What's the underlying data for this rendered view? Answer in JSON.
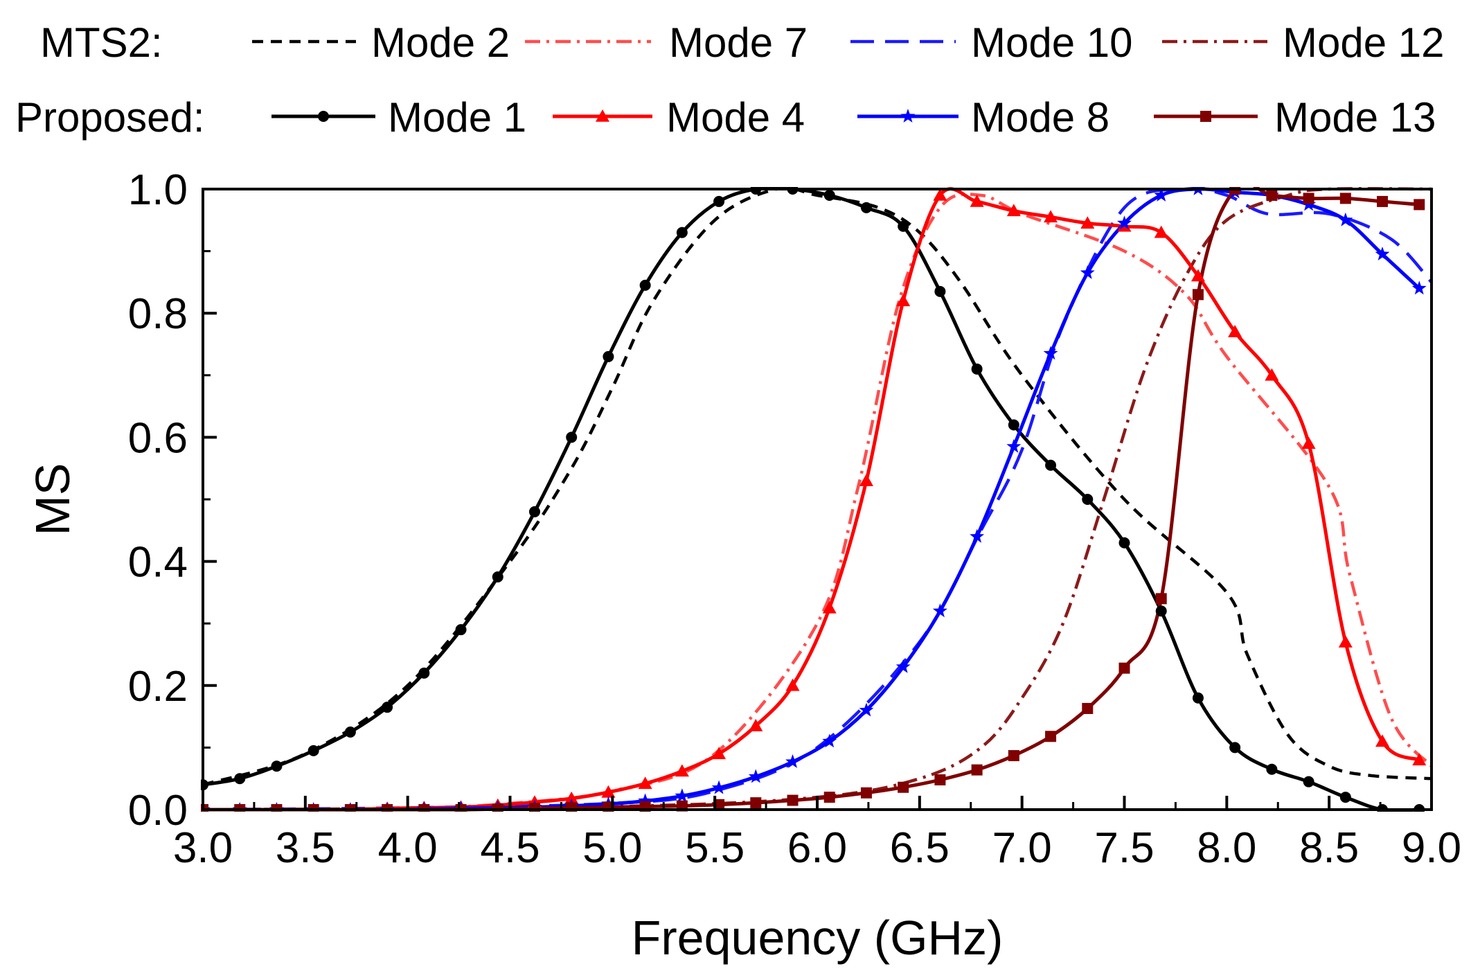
{
  "chart_data": {
    "type": "line",
    "title": "",
    "xlabel": "Frequency (GHz)",
    "ylabel": "MS",
    "xlim": [
      3.0,
      9.0
    ],
    "ylim": [
      0.0,
      1.0
    ],
    "xticks": [
      "3.0",
      "3.5",
      "4.0",
      "4.5",
      "5.0",
      "5.5",
      "6.0",
      "6.5",
      "7.0",
      "7.5",
      "8.0",
      "8.5",
      "9.0"
    ],
    "yticks": [
      "0.0",
      "0.2",
      "0.4",
      "0.6",
      "0.8",
      "1.0"
    ],
    "grid": false,
    "legend": {
      "placement": "top",
      "group_labels": [
        "MTS2:",
        "Proposed:"
      ]
    },
    "series": [
      {
        "name": "Mode 2",
        "group": "MTS2",
        "color": "#000000",
        "dash": "dash",
        "marker": "none",
        "x": [
          3.0,
          3.5,
          4.0,
          4.5,
          4.8,
          5.0,
          5.2,
          5.5,
          5.8,
          6.0,
          6.3,
          6.5,
          6.7,
          7.0,
          7.5,
          8.0,
          8.1,
          8.3,
          8.5,
          8.7,
          9.0
        ],
        "y": [
          0.04,
          0.09,
          0.2,
          0.4,
          0.55,
          0.68,
          0.82,
          0.95,
          1.0,
          0.99,
          0.97,
          0.93,
          0.85,
          0.7,
          0.5,
          0.35,
          0.25,
          0.12,
          0.07,
          0.055,
          0.05
        ]
      },
      {
        "name": "Mode 7",
        "group": "MTS2",
        "color": "#ff4d4d",
        "dash": "dashdot",
        "marker": "none",
        "x": [
          3.0,
          4.0,
          4.5,
          5.0,
          5.5,
          6.0,
          6.2,
          6.4,
          6.6,
          6.8,
          7.0,
          7.5,
          7.8,
          8.0,
          8.5,
          8.6,
          8.8,
          9.0
        ],
        "y": [
          0.0,
          0.002,
          0.01,
          0.03,
          0.09,
          0.3,
          0.52,
          0.82,
          0.97,
          0.99,
          0.96,
          0.9,
          0.83,
          0.73,
          0.52,
          0.38,
          0.15,
          0.07
        ]
      },
      {
        "name": "Mode 10",
        "group": "MTS2",
        "color": "#1a1aff",
        "dash": "longdash",
        "marker": "none",
        "x": [
          3.0,
          4.0,
          5.0,
          5.5,
          6.0,
          6.5,
          6.8,
          7.0,
          7.2,
          7.5,
          7.8,
          8.0,
          8.2,
          8.5,
          8.8,
          9.0
        ],
        "y": [
          0.0,
          0.003,
          0.01,
          0.03,
          0.1,
          0.27,
          0.45,
          0.58,
          0.78,
          0.97,
          1.0,
          0.99,
          0.96,
          0.96,
          0.92,
          0.85
        ]
      },
      {
        "name": "Mode 12",
        "group": "MTS2",
        "color": "#8b1a1a",
        "dash": "dashdot",
        "marker": "none",
        "x": [
          3.0,
          5.0,
          6.0,
          6.5,
          6.8,
          7.0,
          7.2,
          7.4,
          7.6,
          7.8,
          8.0,
          8.3,
          8.5,
          9.0
        ],
        "y": [
          0.0,
          0.005,
          0.02,
          0.05,
          0.1,
          0.18,
          0.3,
          0.5,
          0.71,
          0.86,
          0.95,
          0.99,
          1.0,
          1.0
        ]
      },
      {
        "name": "Mode 1",
        "group": "Proposed",
        "color": "#000000",
        "dash": "solid",
        "marker": "circle",
        "x": [
          3.0,
          3.18,
          3.36,
          3.54,
          3.72,
          3.9,
          4.08,
          4.26,
          4.44,
          4.62,
          4.8,
          4.98,
          5.16,
          5.34,
          5.52,
          5.7,
          5.88,
          6.06,
          6.24,
          6.42,
          6.6,
          6.78,
          6.96,
          7.14,
          7.32,
          7.5,
          7.68,
          7.86,
          8.04,
          8.22,
          8.4,
          8.58,
          8.76,
          8.94
        ],
        "y": [
          0.04,
          0.05,
          0.07,
          0.095,
          0.125,
          0.165,
          0.22,
          0.29,
          0.375,
          0.48,
          0.6,
          0.73,
          0.845,
          0.93,
          0.98,
          1.0,
          1.0,
          0.99,
          0.97,
          0.94,
          0.835,
          0.71,
          0.62,
          0.555,
          0.5,
          0.43,
          0.32,
          0.18,
          0.1,
          0.065,
          0.045,
          0.02,
          0.0,
          0.0
        ]
      },
      {
        "name": "Mode 4",
        "group": "Proposed",
        "color": "#ff0000",
        "dash": "solid",
        "marker": "triangle",
        "x": [
          3.0,
          3.18,
          3.36,
          3.54,
          3.72,
          3.9,
          4.08,
          4.26,
          4.44,
          4.62,
          4.8,
          4.98,
          5.16,
          5.34,
          5.52,
          5.7,
          5.88,
          6.06,
          6.24,
          6.42,
          6.6,
          6.78,
          6.96,
          7.14,
          7.32,
          7.5,
          7.68,
          7.86,
          8.04,
          8.22,
          8.4,
          8.58,
          8.76,
          8.94
        ],
        "y": [
          0.0,
          0.0,
          0.0,
          0.0,
          0.0,
          0.002,
          0.003,
          0.004,
          0.007,
          0.012,
          0.018,
          0.028,
          0.042,
          0.062,
          0.09,
          0.135,
          0.2,
          0.325,
          0.53,
          0.82,
          0.99,
          0.98,
          0.965,
          0.955,
          0.945,
          0.94,
          0.93,
          0.86,
          0.77,
          0.7,
          0.59,
          0.27,
          0.11,
          0.08
        ]
      },
      {
        "name": "Mode 8",
        "group": "Proposed",
        "color": "#0000ff",
        "dash": "solid",
        "marker": "star",
        "x": [
          3.0,
          3.18,
          3.36,
          3.54,
          3.72,
          3.9,
          4.08,
          4.26,
          4.44,
          4.62,
          4.8,
          4.98,
          5.16,
          5.34,
          5.52,
          5.7,
          5.88,
          6.06,
          6.24,
          6.42,
          6.6,
          6.78,
          6.96,
          7.14,
          7.32,
          7.5,
          7.68,
          7.86,
          8.04,
          8.22,
          8.4,
          8.58,
          8.76,
          8.94
        ],
        "y": [
          0.0,
          0.0,
          0.0,
          0.0,
          0.0,
          0.0,
          0.001,
          0.002,
          0.003,
          0.004,
          0.006,
          0.009,
          0.014,
          0.022,
          0.035,
          0.053,
          0.077,
          0.11,
          0.16,
          0.23,
          0.32,
          0.44,
          0.585,
          0.735,
          0.865,
          0.945,
          0.99,
          1.0,
          0.995,
          0.99,
          0.975,
          0.95,
          0.895,
          0.84
        ]
      },
      {
        "name": "Mode 13",
        "group": "Proposed",
        "color": "#800000",
        "dash": "solid",
        "marker": "square",
        "x": [
          3.0,
          3.18,
          3.36,
          3.54,
          3.72,
          3.9,
          4.08,
          4.26,
          4.44,
          4.62,
          4.8,
          4.98,
          5.16,
          5.34,
          5.52,
          5.7,
          5.88,
          6.06,
          6.24,
          6.42,
          6.6,
          6.78,
          6.96,
          7.14,
          7.32,
          7.5,
          7.68,
          7.86,
          8.04,
          8.22,
          8.4,
          8.58,
          8.76,
          8.94
        ],
        "y": [
          0.0,
          0.0,
          0.0,
          0.0,
          0.0,
          0.0,
          0.0,
          0.0,
          0.001,
          0.002,
          0.003,
          0.004,
          0.005,
          0.006,
          0.008,
          0.011,
          0.015,
          0.02,
          0.027,
          0.036,
          0.048,
          0.064,
          0.087,
          0.118,
          0.163,
          0.228,
          0.34,
          0.83,
          1.0,
          0.99,
          0.985,
          0.985,
          0.98,
          0.975
        ]
      }
    ]
  }
}
